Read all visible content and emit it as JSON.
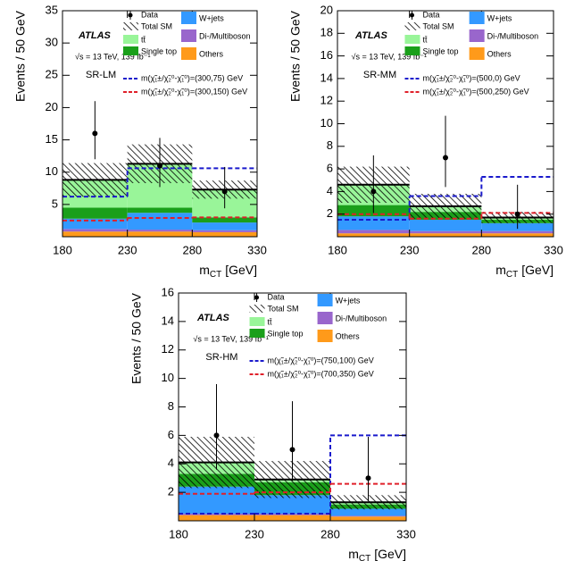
{
  "chart_data": [
    {
      "type": "stacked_histogram",
      "annotations": {
        "experiment": "ATLAS",
        "energy": "√s = 13 TeV, 139 fb⁻¹",
        "region": "SR-LM"
      },
      "ylabel": "Events / 50 GeV",
      "xlabel": [
        "m",
        "CT",
        "[GeV]"
      ],
      "bins": [
        180,
        230,
        280,
        330
      ],
      "xlim": [
        180,
        330
      ],
      "xticks": [
        180,
        230,
        280,
        330
      ],
      "ylim": [
        0,
        35
      ],
      "yticks": [
        5,
        10,
        15,
        20,
        25,
        30,
        35
      ],
      "series": [
        {
          "name": "Others",
          "color": "#ff9a1a",
          "values": [
            0.8,
            0.8,
            0.7
          ]
        },
        {
          "name": "Di-/Multiboson",
          "color": "#9966cc",
          "values": [
            0.4,
            0.3,
            0.3
          ]
        },
        {
          "name": "W+jets",
          "color": "#3399ff",
          "values": [
            1.6,
            2.6,
            1.2
          ]
        },
        {
          "name": "Single top",
          "color": "#1a9f1a",
          "values": [
            1.7,
            0.8,
            0.8
          ]
        },
        {
          "name": "tt̄",
          "color": "#99f599",
          "values": [
            4.3,
            6.8,
            4.3
          ]
        }
      ],
      "total": {
        "name": "Total SM",
        "errors": [
          2.6,
          3.0,
          1.4
        ]
      },
      "data": {
        "name": "Data",
        "values": [
          16,
          11,
          7
        ],
        "errors_low": [
          4,
          3.3,
          2.6
        ],
        "errors_high": [
          5,
          4.3,
          3.8
        ]
      },
      "signals": [
        {
          "name": "m(χ̃₁±/χ̃₂⁰-χ̃₁⁰)=(300,75) GeV",
          "color": "#1a1acc",
          "values": [
            6.2,
            10.6,
            10.6
          ]
        },
        {
          "name": "m(χ̃₁±/χ̃₂⁰-χ̃₁⁰)=(300,150) GeV",
          "color": "#e0202a",
          "values": [
            2.5,
            2.9,
            3.0
          ]
        }
      ]
    },
    {
      "type": "stacked_histogram",
      "annotations": {
        "experiment": "ATLAS",
        "energy": "√s = 13 TeV, 139 fb⁻¹",
        "region": "SR-MM"
      },
      "ylabel": "Events / 50 GeV",
      "xlabel": [
        "m",
        "CT",
        "[GeV]"
      ],
      "bins": [
        180,
        230,
        280,
        330
      ],
      "xlim": [
        180,
        330
      ],
      "xticks": [
        180,
        230,
        280,
        330
      ],
      "ylim": [
        0,
        20
      ],
      "yticks": [
        2,
        4,
        6,
        8,
        10,
        12,
        14,
        16,
        18,
        20
      ],
      "series": [
        {
          "name": "Others",
          "color": "#ff9a1a",
          "values": [
            0.3,
            0.3,
            0.3
          ]
        },
        {
          "name": "Di-/Multiboson",
          "color": "#9966cc",
          "values": [
            0.3,
            0.2,
            0.2
          ]
        },
        {
          "name": "W+jets",
          "color": "#3399ff",
          "values": [
            1.2,
            1.0,
            0.7
          ]
        },
        {
          "name": "Single top",
          "color": "#1a9f1a",
          "values": [
            1.0,
            0.7,
            0.3
          ]
        },
        {
          "name": "tt̄",
          "color": "#99f599",
          "values": [
            1.8,
            0.5,
            0.2
          ]
        }
      ],
      "total": {
        "name": "Total SM",
        "errors": [
          1.6,
          1.1,
          0.5
        ]
      },
      "data": {
        "name": "Data",
        "values": [
          4,
          7,
          2
        ],
        "errors_low": [
          1.9,
          2.6,
          1.3
        ],
        "errors_high": [
          3.2,
          3.7,
          2.6
        ]
      },
      "signals": [
        {
          "name": "m(χ̃₁±/χ̃₂⁰-χ̃₁⁰)=(500,0) GeV",
          "color": "#1a1acc",
          "values": [
            1.5,
            3.6,
            5.3
          ]
        },
        {
          "name": "m(χ̃₁±/χ̃₂⁰-χ̃₁⁰)=(500,250) GeV",
          "color": "#e0202a",
          "values": [
            2.0,
            1.6,
            2.1
          ]
        }
      ]
    },
    {
      "type": "stacked_histogram",
      "annotations": {
        "experiment": "ATLAS",
        "energy": "√s = 13 TeV, 139 fb⁻¹",
        "region": "SR-HM"
      },
      "ylabel": "Events / 50 GeV",
      "xlabel": [
        "m",
        "CT",
        "[GeV]"
      ],
      "bins": [
        180,
        230,
        280,
        330
      ],
      "xlim": [
        180,
        330
      ],
      "xticks": [
        180,
        230,
        280,
        330
      ],
      "ylim": [
        0,
        16
      ],
      "yticks": [
        2,
        4,
        6,
        8,
        10,
        12,
        14,
        16
      ],
      "series": [
        {
          "name": "Others",
          "color": "#ff9a1a",
          "values": [
            0.4,
            0.4,
            0.3
          ]
        },
        {
          "name": "Di-/Multiboson",
          "color": "#9966cc",
          "values": [
            0.1,
            0.1,
            0.05
          ]
        },
        {
          "name": "W+jets",
          "color": "#3399ff",
          "values": [
            1.9,
            1.3,
            0.5
          ]
        },
        {
          "name": "Single top",
          "color": "#1a9f1a",
          "values": [
            0.9,
            0.9,
            0.3
          ]
        },
        {
          "name": "tt̄",
          "color": "#99f599",
          "values": [
            0.8,
            0.2,
            0.15
          ]
        }
      ],
      "total": {
        "name": "Total SM",
        "errors": [
          1.8,
          1.3,
          0.5
        ]
      },
      "data": {
        "name": "Data",
        "values": [
          6,
          5,
          3
        ],
        "errors_low": [
          2.4,
          2.2,
          1.6
        ],
        "errors_high": [
          3.6,
          3.4,
          2.9
        ]
      },
      "signals": [
        {
          "name": "m(χ̃₁±/χ̃₂⁰-χ̃₁⁰)=(750,100) GeV",
          "color": "#1a1acc",
          "values": [
            0.5,
            0.5,
            6.0
          ]
        },
        {
          "name": "m(χ̃₁±/χ̃₂⁰-χ̃₁⁰)=(700,350) GeV",
          "color": "#e0202a",
          "values": [
            1.9,
            2.0,
            2.6
          ]
        }
      ]
    }
  ]
}
